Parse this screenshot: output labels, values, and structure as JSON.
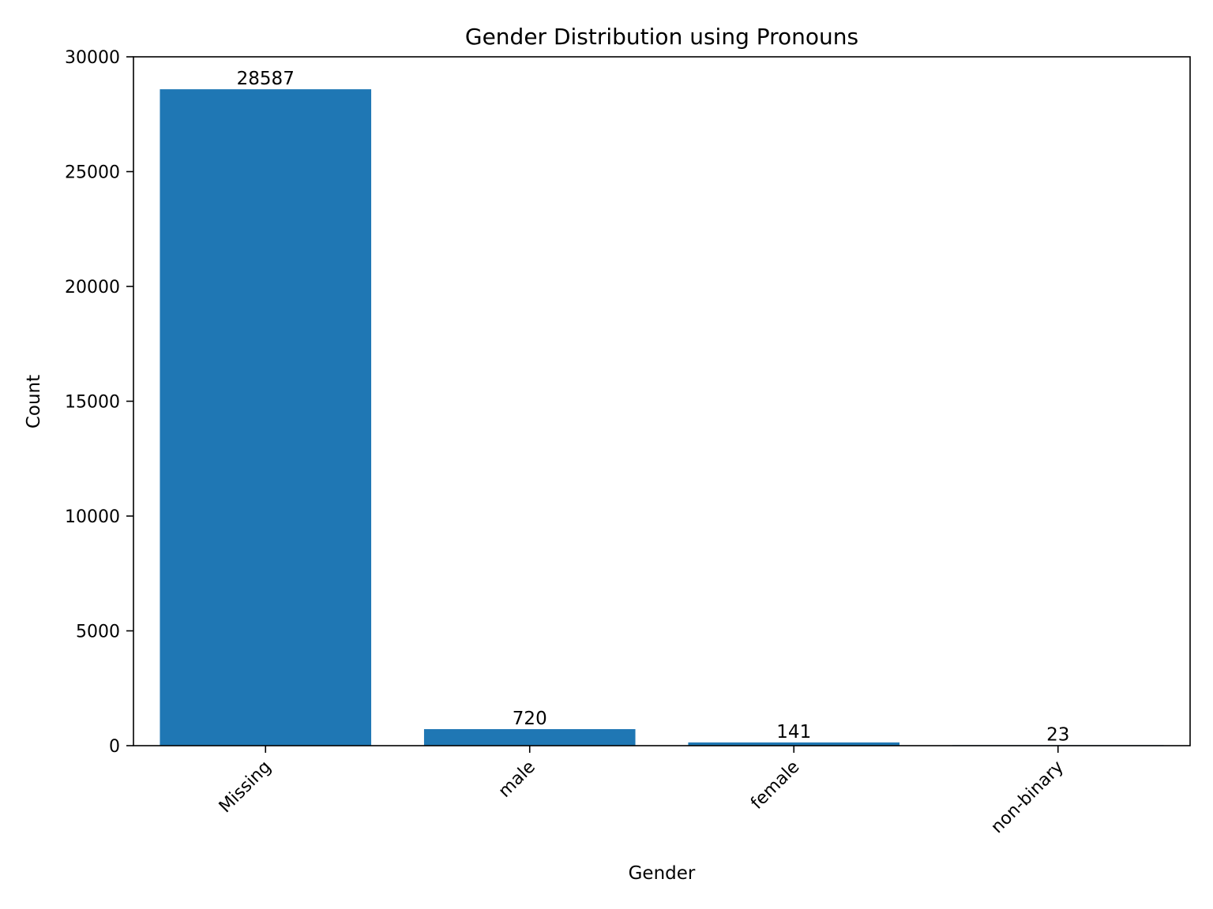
{
  "chart_data": {
    "type": "bar",
    "title": "Gender Distribution using Pronouns",
    "xlabel": "Gender",
    "ylabel": "Count",
    "categories": [
      "Missing",
      "male",
      "female",
      "non-binary"
    ],
    "values": [
      28587,
      720,
      141,
      23
    ],
    "ylim": [
      0,
      30000
    ],
    "yticks": [
      0,
      5000,
      10000,
      15000,
      20000,
      25000,
      30000
    ],
    "grid": false,
    "legend": "none",
    "bar_color": "#1f77b4"
  }
}
